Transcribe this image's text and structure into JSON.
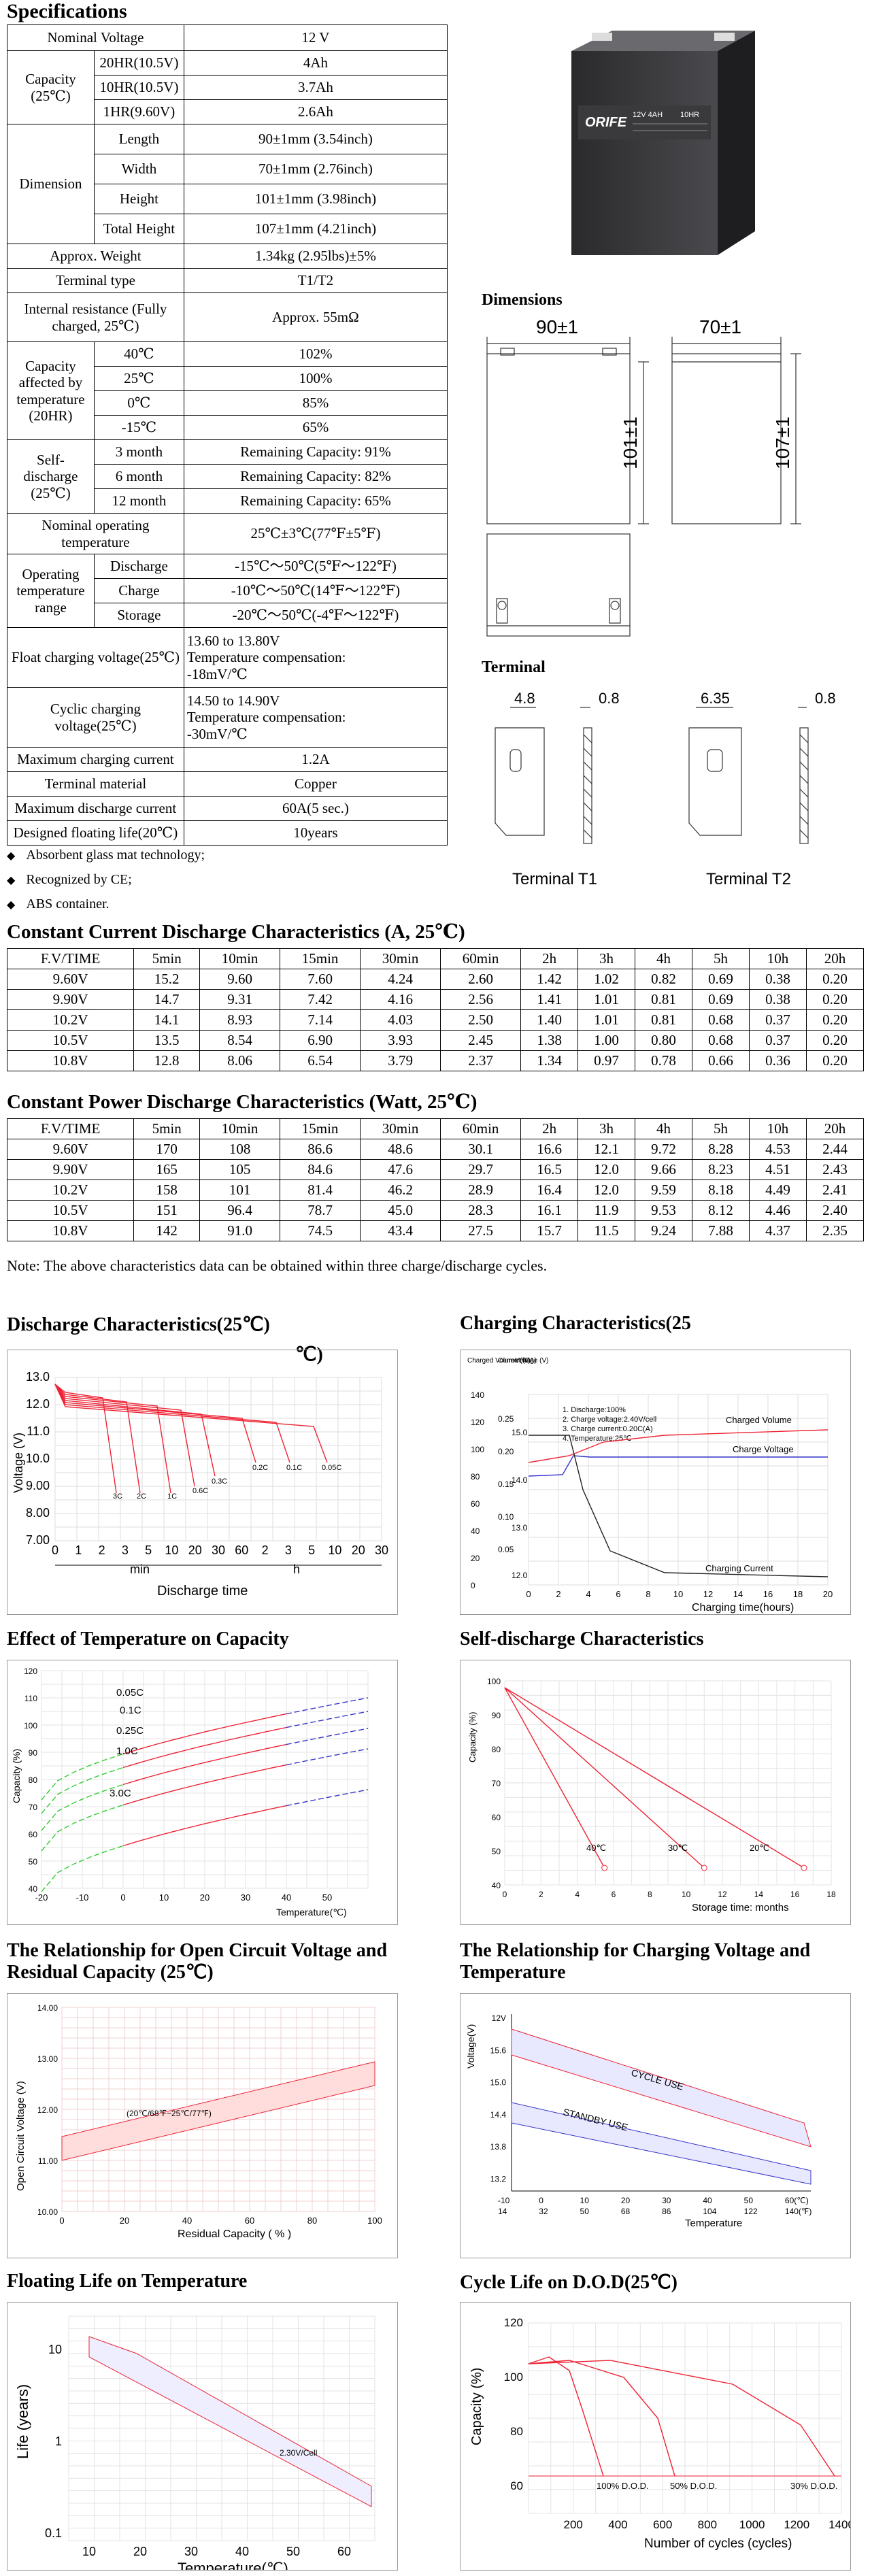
{
  "spec_title": "Specifications",
  "spec": {
    "nominal_voltage": [
      "Nominal Voltage",
      "12 V"
    ],
    "capacity_label": "Capacity (25℃)",
    "capacity": [
      [
        "20HR(10.5V)",
        "4Ah"
      ],
      [
        "10HR(10.5V)",
        "3.7Ah"
      ],
      [
        "1HR(9.60V)",
        "2.6Ah"
      ]
    ],
    "dimension_label": "Dimension",
    "dimension": [
      [
        "Length",
        "90±1mm (3.54inch)"
      ],
      [
        "Width",
        "70±1mm (2.76inch)"
      ],
      [
        "Height",
        "101±1mm (3.98inch)"
      ],
      [
        "Total Height",
        "107±1mm (4.21inch)"
      ]
    ],
    "weight": [
      "Approx. Weight",
      "1.34kg (2.95lbs)±5%"
    ],
    "terminal_type": [
      "Terminal type",
      "T1/T2"
    ],
    "internal_resistance": [
      "Internal resistance (Fully charged, 25℃)",
      "Approx. 55mΩ"
    ],
    "cap_temp_label": "Capacity affected by temperature (20HR)",
    "cap_temp": [
      [
        "40℃",
        "102%"
      ],
      [
        "25℃",
        "100%"
      ],
      [
        "0℃",
        "85%"
      ],
      [
        "-15℃",
        "65%"
      ]
    ],
    "self_discharge_label": "Self-discharge (25℃)",
    "self_discharge": [
      [
        "3 month",
        "Remaining Capacity: 91%"
      ],
      [
        "6 month",
        "Remaining Capacity: 82%"
      ],
      [
        "12 month",
        "Remaining Capacity: 65%"
      ]
    ],
    "nominal_op_temp": [
      "Nominal operating temperature",
      "25℃±3℃(77℉±5℉)"
    ],
    "op_range_label": "Operating temperature range",
    "op_range": [
      [
        "Discharge",
        "-15℃～50℃(5℉～122℉)"
      ],
      [
        "Charge",
        "-10℃～50℃(14℉～122℉)"
      ],
      [
        "Storage",
        "-20℃～50℃(-4℉～122℉)"
      ]
    ],
    "float_voltage": [
      "Float charging voltage(25℃)",
      "13.60 to 13.80V",
      "Temperature compensation:",
      "-18mV/℃"
    ],
    "cyclic_voltage": [
      "Cyclic charging voltage(25℃)",
      "14.50 to 14.90V",
      "Temperature compensation:",
      "-30mV/℃"
    ],
    "max_charge": [
      "Maximum charging current",
      "1.2A"
    ],
    "terminal_material": [
      "Terminal material",
      "Copper"
    ],
    "max_discharge": [
      "Maximum discharge current",
      "60A(5 sec.)"
    ],
    "floating_life": [
      "Designed floating life(20℃)",
      "10years"
    ]
  },
  "bullets": [
    "Absorbent glass mat technology;",
    "Recognized by  CE;",
    "ABS container."
  ],
  "battery_label": {
    "brand": "ORIFE",
    "model": "12V 4AH",
    "rate": "10HR"
  },
  "dimensions_title": "Dimensions",
  "dim_labels": {
    "len": "90±1",
    "wid": "70±1",
    "h": "101±1",
    "th": "107±1"
  },
  "terminal_title": "Terminal",
  "terminal_labels": {
    "t1_w": "4.8",
    "t1_t": "0.8",
    "t2_w": "6.35",
    "t2_t": "0.8",
    "t1": "Terminal T1",
    "t2": "Terminal T2"
  },
  "cc_title": "Constant Current Discharge Characteristics (A, 25℃)",
  "cc_header": [
    "F.V/TIME",
    "5min",
    "10min",
    "15min",
    "30min",
    "60min",
    "2h",
    "3h",
    "4h",
    "5h",
    "10h",
    "20h"
  ],
  "cc_rows": [
    [
      "9.60V",
      "15.2",
      "9.60",
      "7.60",
      "4.24",
      "2.60",
      "1.42",
      "1.02",
      "0.82",
      "0.69",
      "0.38",
      "0.20"
    ],
    [
      "9.90V",
      "14.7",
      "9.31",
      "7.42",
      "4.16",
      "2.56",
      "1.41",
      "1.01",
      "0.81",
      "0.69",
      "0.38",
      "0.20"
    ],
    [
      "10.2V",
      "14.1",
      "8.93",
      "7.14",
      "4.03",
      "2.50",
      "1.40",
      "1.01",
      "0.81",
      "0.68",
      "0.37",
      "0.20"
    ],
    [
      "10.5V",
      "13.5",
      "8.54",
      "6.90",
      "3.93",
      "2.45",
      "1.38",
      "1.00",
      "0.80",
      "0.68",
      "0.37",
      "0.20"
    ],
    [
      "10.8V",
      "12.8",
      "8.06",
      "6.54",
      "3.79",
      "2.37",
      "1.34",
      "0.97",
      "0.78",
      "0.66",
      "0.36",
      "0.20"
    ]
  ],
  "cp_title": "Constant Power Discharge Characteristics (Watt, 25℃)",
  "cp_header": [
    "F.V/TIME",
    "5min",
    "10min",
    "15min",
    "30min",
    "60min",
    "2h",
    "3h",
    "4h",
    "5h",
    "10h",
    "20h"
  ],
  "cp_rows": [
    [
      "9.60V",
      "170",
      "108",
      "86.6",
      "48.6",
      "30.1",
      "16.6",
      "12.1",
      "9.72",
      "8.28",
      "4.53",
      "2.44"
    ],
    [
      "9.90V",
      "165",
      "105",
      "84.6",
      "47.6",
      "29.7",
      "16.5",
      "12.0",
      "9.66",
      "8.23",
      "4.51",
      "2.43"
    ],
    [
      "10.2V",
      "158",
      "101",
      "81.4",
      "46.2",
      "28.9",
      "16.4",
      "12.0",
      "9.59",
      "8.18",
      "4.49",
      "2.41"
    ],
    [
      "10.5V",
      "151",
      "96.4",
      "78.7",
      "45.0",
      "28.3",
      "16.1",
      "11.9",
      "9.53",
      "8.12",
      "4.46",
      "2.40"
    ],
    [
      "10.8V",
      "142",
      "91.0",
      "74.5",
      "43.4",
      "27.5",
      "15.7",
      "11.5",
      "9.24",
      "7.88",
      "4.37",
      "2.35"
    ]
  ],
  "note": "Note: The above characteristics data can be obtained within three charge/discharge cycles.",
  "charts": {
    "discharge": {
      "title": "Discharge Characteristics(25℃)",
      "ylabel": "Voltage (V)",
      "yticks": [
        "13.0",
        "12.0",
        "11.0",
        "10.0",
        "9.00",
        "8.00",
        "7.00"
      ],
      "xticks": [
        "0",
        "1",
        "2",
        "3",
        "5",
        "10",
        "20",
        "30",
        "60",
        "2",
        "3",
        "5",
        "10",
        "20",
        "30"
      ],
      "min": "min",
      "h": "h",
      "xlabel": "Discharge time",
      "curve_labels": [
        "3C",
        "2C",
        "1C",
        "0.6C",
        "0.3C",
        "0.2C",
        "0.1C",
        "0.05C"
      ]
    },
    "charging": {
      "title": "Charging Characteristics(25",
      "title2": "℃)",
      "col1": "Charged Volume (%)",
      "col2": "Current (CA)",
      "col3": "Voltage (V)",
      "legend": [
        "1. Discharge:100%",
        "2. Charge voltage:2.40V/cell",
        "3. Charge current:0.20C(A)",
        "4. Temperature:25℃"
      ],
      "labels": [
        "Charged Volume",
        "Charge Voltage",
        "Charging Current"
      ],
      "xlabel": "Charging time(hours)",
      "xticks": [
        "0",
        "2",
        "4",
        "6",
        "8",
        "10",
        "12",
        "14",
        "16",
        "18",
        "20"
      ],
      "y1": [
        "140",
        "120",
        "100",
        "80",
        "60",
        "40",
        "20",
        "0"
      ],
      "y2": [
        "0.25",
        "0.20",
        "0.15",
        "0.10",
        "0.05"
      ],
      "y3": [
        "15.0",
        "14.0",
        "13.0",
        "12.0"
      ]
    },
    "temp_cap": {
      "title": "Effect of Temperature on Capacity",
      "ylabel": "Capacity (%)",
      "xlabel": "Temperature(℃)",
      "yticks": [
        "120",
        "110",
        "100",
        "90",
        "80",
        "70",
        "60",
        "50",
        "40"
      ],
      "xticks": [
        "-20",
        "-10",
        "0",
        "10",
        "20",
        "30",
        "40",
        "50"
      ],
      "curves": [
        "0.05C",
        "0.1C",
        "0.25C",
        "1.0C",
        "3.0C"
      ]
    },
    "self_dis": {
      "title": "Self-discharge Characteristics",
      "ylabel": "Capacity (%)",
      "xlabel": "Storage time: months",
      "yticks": [
        "100",
        "90",
        "80",
        "70",
        "60",
        "50",
        "40"
      ],
      "xticks": [
        "0",
        "2",
        "4",
        "6",
        "8",
        "10",
        "12",
        "14",
        "16",
        "18"
      ],
      "curves": [
        "40℃",
        "30℃",
        "20℃"
      ]
    },
    "ocv": {
      "title": "The Relationship for Open Circuit Voltage and Residual Capacity (25℃)",
      "ylabel": "Open Circuit Voltage (V)",
      "xlabel": "Residual Capacity ( % )",
      "yticks": [
        "14.00",
        "13.00",
        "12.00",
        "11.00",
        "10.00"
      ],
      "xticks": [
        "0",
        "20",
        "40",
        "60",
        "80",
        "100"
      ],
      "band": "(20℃/68℉~25℃/77℉)"
    },
    "charge_v": {
      "title": "The Relationship for Charging Voltage and Temperature",
      "ylabel": "Voltage(V)",
      "xlabel": "Temperature",
      "yticks": [
        "12V",
        "15.6",
        "15.0",
        "14.4",
        "13.8",
        "13.2"
      ],
      "xc": [
        "-10",
        "0",
        "10",
        "20",
        "30",
        "40",
        "50",
        "60(℃)"
      ],
      "xf": [
        "14",
        "32",
        "50",
        "68",
        "86",
        "104",
        "122",
        "140(℉)"
      ],
      "bands": [
        "CYCLE USE",
        "STANDBY USE"
      ]
    },
    "float_life": {
      "title": "Floating Life on Temperature",
      "ylabel": "Life (years)",
      "xlabel": "Temperature(℃)",
      "yticks": [
        "10",
        "1",
        "0.1"
      ],
      "xticks": [
        "10",
        "20",
        "30",
        "40",
        "50",
        "60"
      ],
      "band": "2.30V/Cell"
    },
    "cycle_life": {
      "title": "Cycle Life on D.O.D(25℃)",
      "ylabel": "Capacity (%)",
      "xlabel": "Number of cycles (cycles)",
      "yticks": [
        "120",
        "100",
        "80",
        "60"
      ],
      "xticks": [
        "200",
        "400",
        "600",
        "800",
        "1000",
        "1200",
        "1400"
      ],
      "curves": [
        "100% D.O.D.",
        "50% D.O.D.",
        "30% D.O.D."
      ]
    }
  }
}
